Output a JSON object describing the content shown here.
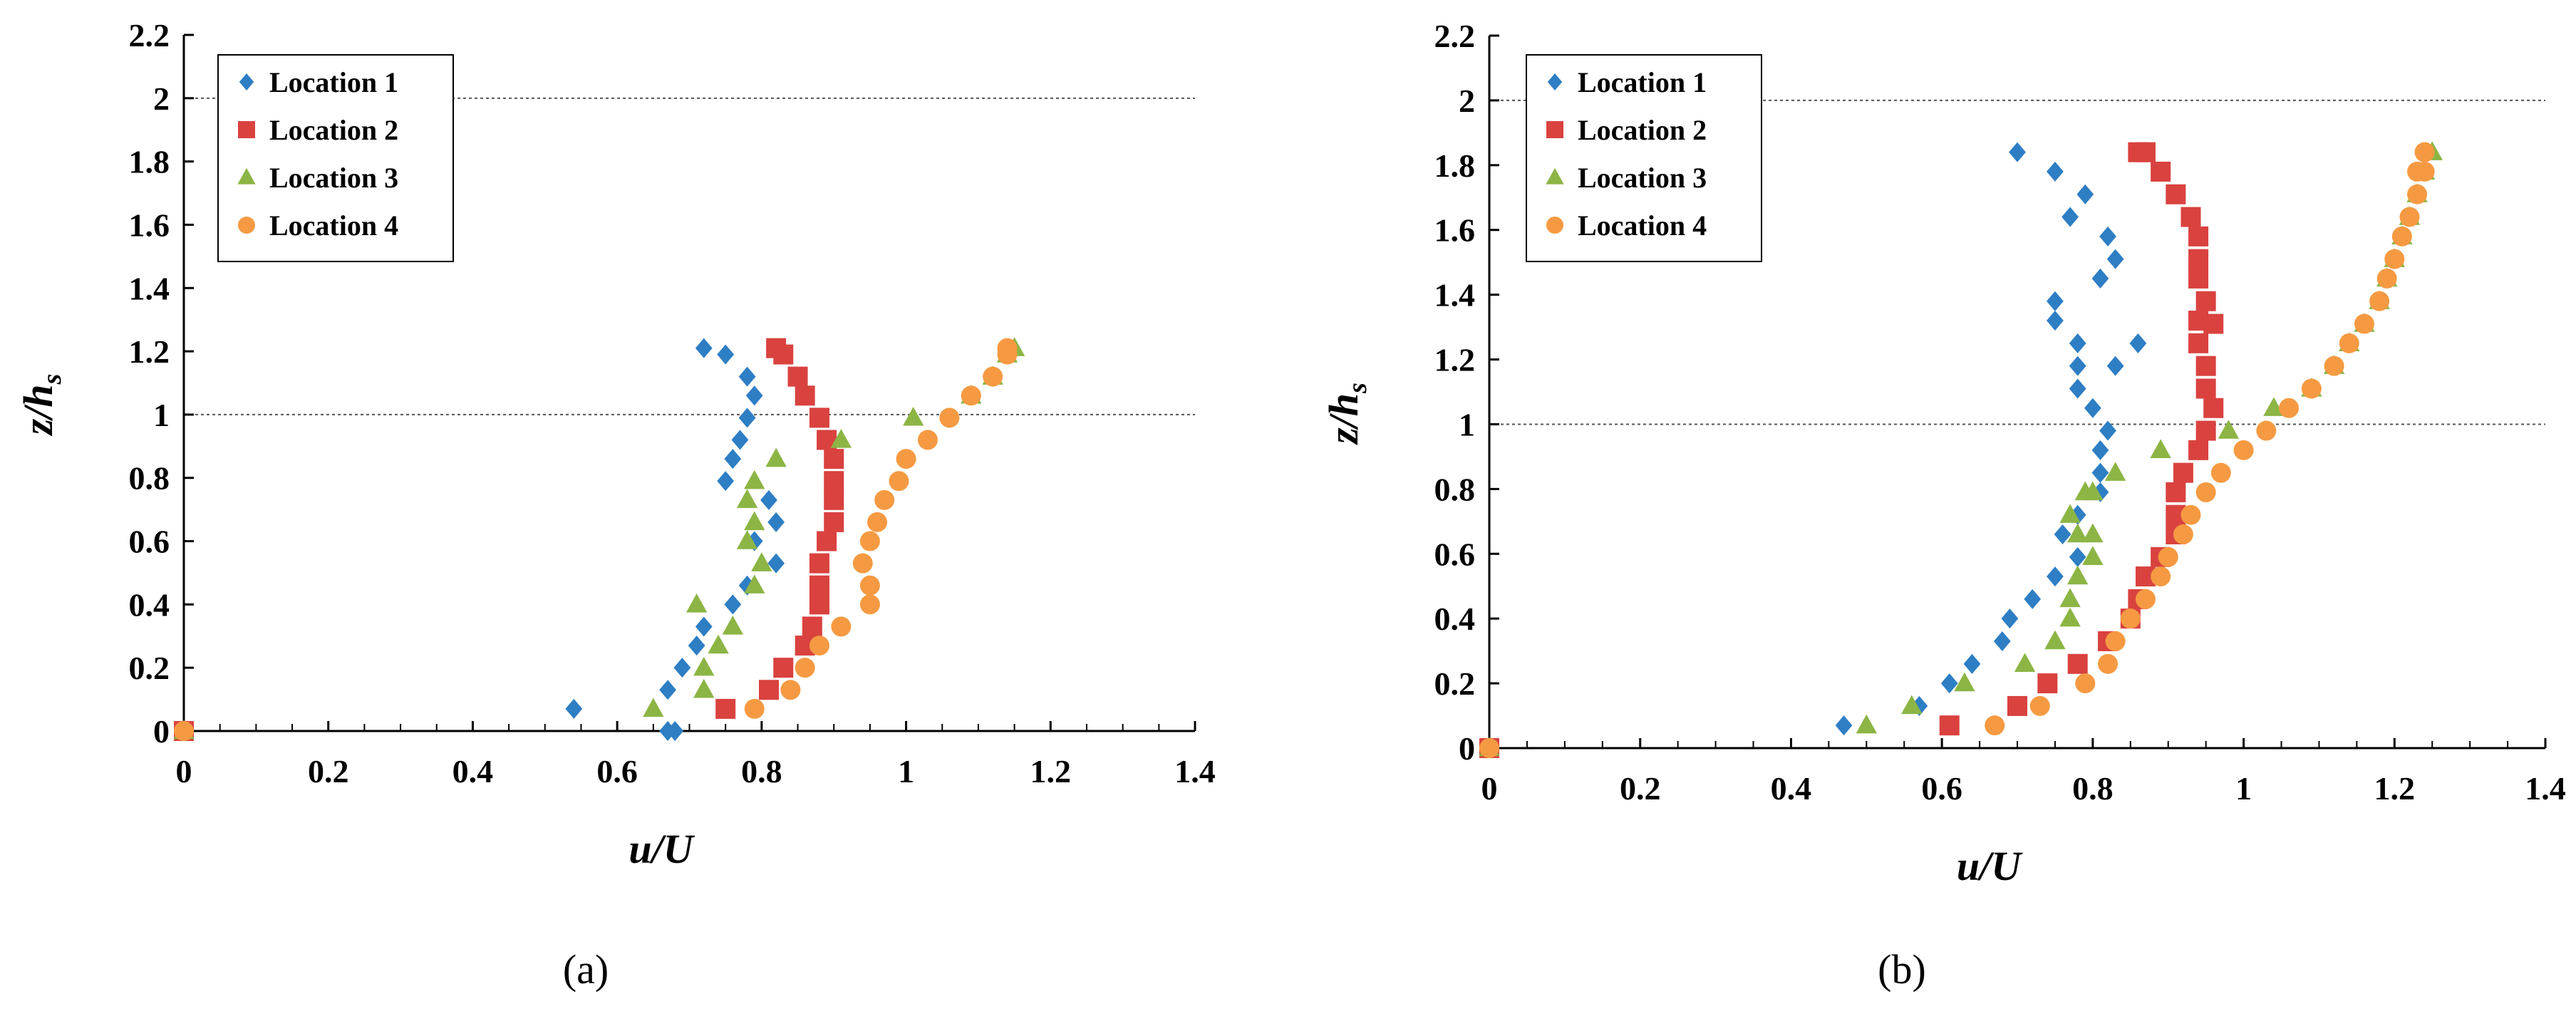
{
  "chart_data": [
    {
      "type": "scatter",
      "caption": "(a)",
      "xlabel": "u/U",
      "ylabel_main": "z/h",
      "ylabel_sub": "s",
      "xlim": [
        0,
        1.4
      ],
      "ylim": [
        0,
        2.2
      ],
      "x_ticks": [
        "0",
        "0.2",
        "0.4",
        "0.6",
        "0.8",
        "1",
        "1.2",
        "1.4"
      ],
      "y_ticks": [
        "0",
        "0.2",
        "0.4",
        "0.6",
        "0.8",
        "1",
        "1.2",
        "1.4",
        "1.6",
        "1.8",
        "2",
        "2.2"
      ],
      "reference_lines_y": [
        1,
        2
      ],
      "grid": false,
      "legend_position": "top-left",
      "series": [
        {
          "name": "Location 1",
          "marker": "diamond",
          "color": "#2e7ec4",
          "x": [
            0,
            0.54,
            0.67,
            0.69,
            0.71,
            0.72,
            0.76,
            0.78,
            0.82,
            0.79,
            0.82,
            0.81,
            0.75,
            0.76,
            0.77,
            0.78,
            0.79,
            0.78,
            0.75,
            0.72,
            0.68,
            0.67
          ],
          "y": [
            0,
            0.07,
            0.13,
            0.2,
            0.27,
            0.33,
            0.4,
            0.46,
            0.53,
            0.6,
            0.66,
            0.73,
            0.79,
            0.86,
            0.92,
            0.99,
            1.06,
            1.12,
            1.19,
            1.21,
            0,
            0
          ]
        },
        {
          "name": "Location 2",
          "marker": "square",
          "color": "#d9423f",
          "x": [
            0,
            0.75,
            0.81,
            0.83,
            0.86,
            0.87,
            0.88,
            0.88,
            0.88,
            0.89,
            0.9,
            0.9,
            0.9,
            0.9,
            0.89,
            0.88,
            0.86,
            0.85,
            0.83,
            0.82
          ],
          "y": [
            0,
            0.07,
            0.13,
            0.2,
            0.27,
            0.33,
            0.4,
            0.46,
            0.53,
            0.6,
            0.66,
            0.73,
            0.79,
            0.86,
            0.92,
            0.99,
            1.06,
            1.12,
            1.19,
            1.21
          ]
        },
        {
          "name": "Location 3",
          "marker": "triangle",
          "color": "#8cb545",
          "x": [
            0,
            0.65,
            0.72,
            0.72,
            0.74,
            0.76,
            0.71,
            0.79,
            0.8,
            0.78,
            0.79,
            0.78,
            0.79,
            0.82,
            0.91,
            1.01,
            1.09,
            1.12,
            1.14,
            1.15
          ],
          "y": [
            0,
            0.07,
            0.13,
            0.2,
            0.27,
            0.33,
            0.4,
            0.46,
            0.53,
            0.6,
            0.66,
            0.73,
            0.79,
            0.86,
            0.92,
            0.99,
            1.06,
            1.12,
            1.19,
            1.21
          ]
        },
        {
          "name": "Location 4",
          "marker": "circle",
          "color": "#f59a42",
          "x": [
            0,
            0.79,
            0.84,
            0.86,
            0.88,
            0.91,
            0.95,
            0.95,
            0.94,
            0.95,
            0.96,
            0.97,
            0.99,
            1.0,
            1.03,
            1.06,
            1.09,
            1.12,
            1.14,
            1.14
          ],
          "y": [
            0,
            0.07,
            0.13,
            0.2,
            0.27,
            0.33,
            0.4,
            0.46,
            0.53,
            0.6,
            0.66,
            0.73,
            0.79,
            0.86,
            0.92,
            0.99,
            1.06,
            1.12,
            1.19,
            1.21
          ]
        }
      ]
    },
    {
      "type": "scatter",
      "caption": "(b)",
      "xlabel": "u/U",
      "ylabel_main": "z/h",
      "ylabel_sub": "s",
      "xlim": [
        0,
        1.4
      ],
      "ylim": [
        0,
        2.2
      ],
      "x_ticks": [
        "0",
        "0.2",
        "0.4",
        "0.6",
        "0.8",
        "1",
        "1.2",
        "1.4"
      ],
      "y_ticks": [
        "0",
        "0.2",
        "0.4",
        "0.6",
        "0.8",
        "1",
        "1.2",
        "1.4",
        "1.6",
        "1.8",
        "2",
        "2.2"
      ],
      "reference_lines_y": [
        1,
        2
      ],
      "grid": false,
      "legend_position": "top-left",
      "series": [
        {
          "name": "Location 1",
          "marker": "diamond",
          "color": "#2e7ec4",
          "x": [
            0,
            0.47,
            0.57,
            0.61,
            0.64,
            0.68,
            0.69,
            0.72,
            0.75,
            0.78,
            0.76,
            0.78,
            0.81,
            0.81,
            0.81,
            0.82,
            0.8,
            0.78,
            0.78,
            0.78,
            0.86,
            0.83,
            0.75,
            0.75,
            0.83,
            0.81,
            0.82,
            0.79,
            0.77,
            0.75,
            0.7
          ],
          "y": [
            0,
            0.07,
            0.13,
            0.2,
            0.26,
            0.33,
            0.4,
            0.46,
            0.53,
            0.59,
            0.66,
            0.72,
            0.79,
            0.85,
            0.92,
            0.98,
            1.05,
            1.11,
            1.18,
            1.25,
            1.25,
            1.18,
            1.32,
            1.38,
            1.51,
            1.45,
            1.58,
            1.71,
            1.64,
            1.78,
            1.84
          ]
        },
        {
          "name": "Location 2",
          "marker": "square",
          "color": "#d9423f",
          "x": [
            0,
            0.61,
            0.7,
            0.74,
            0.78,
            0.82,
            0.85,
            0.86,
            0.87,
            0.89,
            0.91,
            0.91,
            0.91,
            0.92,
            0.94,
            0.95,
            0.96,
            0.95,
            0.95,
            0.94,
            0.94,
            0.96,
            0.95,
            0.94,
            0.94,
            0.94,
            0.93,
            0.91,
            0.89,
            0.87,
            0.86
          ],
          "y": [
            0,
            0.07,
            0.13,
            0.2,
            0.26,
            0.33,
            0.4,
            0.46,
            0.53,
            0.59,
            0.66,
            0.72,
            0.79,
            0.85,
            0.92,
            0.98,
            1.05,
            1.11,
            1.18,
            1.25,
            1.32,
            1.31,
            1.38,
            1.45,
            1.51,
            1.58,
            1.64,
            1.71,
            1.78,
            1.84,
            1.84
          ]
        },
        {
          "name": "Location 3",
          "marker": "triangle",
          "color": "#8cb545",
          "x": [
            0,
            0.5,
            0.56,
            0.63,
            0.71,
            0.75,
            0.77,
            0.77,
            0.78,
            0.8,
            0.8,
            0.77,
            0.78,
            0.79,
            0.8,
            0.83,
            0.89,
            0.98,
            1.04,
            1.09,
            1.12,
            1.14,
            1.16,
            1.18,
            1.19,
            1.2,
            1.21,
            1.22,
            1.23,
            1.24,
            1.25
          ],
          "y": [
            0,
            0.07,
            0.13,
            0.2,
            0.26,
            0.33,
            0.4,
            0.46,
            0.53,
            0.59,
            0.66,
            0.72,
            0.66,
            0.79,
            0.79,
            0.85,
            0.92,
            0.98,
            1.05,
            1.11,
            1.18,
            1.25,
            1.31,
            1.38,
            1.45,
            1.51,
            1.58,
            1.64,
            1.71,
            1.78,
            1.84
          ]
        },
        {
          "name": "Location 4",
          "marker": "circle",
          "color": "#f59a42",
          "x": [
            0,
            0.67,
            0.73,
            0.79,
            0.82,
            0.83,
            0.85,
            0.87,
            0.89,
            0.9,
            0.92,
            0.93,
            0.95,
            0.97,
            1.0,
            1.03,
            1.06,
            1.09,
            1.12,
            1.14,
            1.16,
            1.18,
            1.19,
            1.2,
            1.21,
            1.22,
            1.23,
            1.23,
            1.24,
            1.24,
            1.24
          ],
          "y": [
            0,
            0.07,
            0.13,
            0.2,
            0.26,
            0.33,
            0.4,
            0.46,
            0.53,
            0.59,
            0.66,
            0.72,
            0.79,
            0.85,
            0.92,
            0.98,
            1.05,
            1.11,
            1.18,
            1.25,
            1.31,
            1.38,
            1.45,
            1.51,
            1.58,
            1.64,
            1.71,
            1.78,
            1.84,
            1.78,
            1.84
          ]
        }
      ]
    }
  ]
}
